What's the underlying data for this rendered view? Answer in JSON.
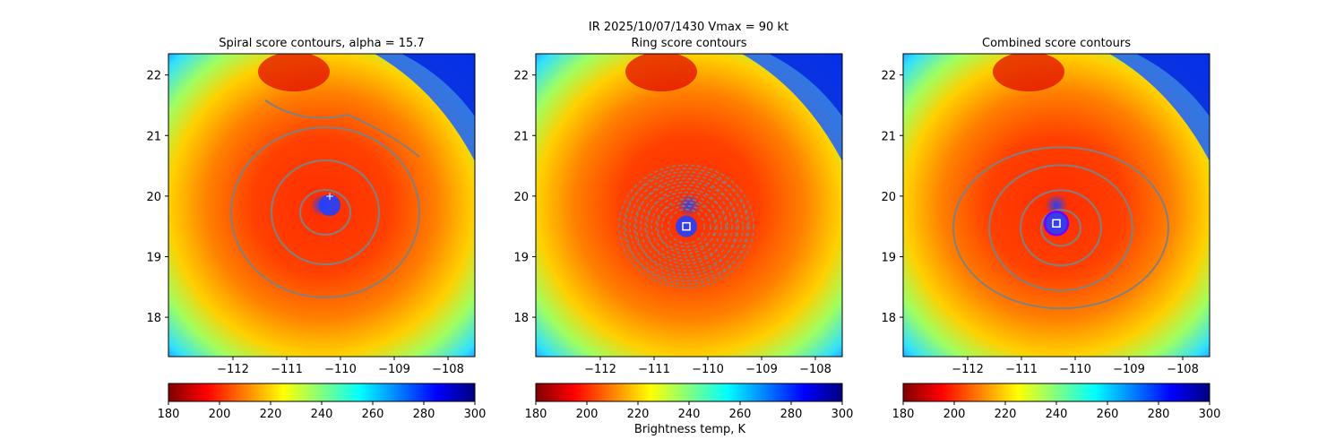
{
  "figure": {
    "suptitle_line1": "IR  2025/10/07/1430    Vmax = 90 kt",
    "colorbar_label": "Brightness temp, K"
  },
  "chart_data": [
    {
      "type": "heatmap",
      "title": "Spiral score contours, alpha = 15.7",
      "x_ticks": [
        -112,
        -111,
        -110,
        -109,
        -108
      ],
      "y_ticks": [
        18,
        19,
        20,
        21,
        22
      ],
      "xlim": [
        -113.2,
        -107.5
      ],
      "ylim": [
        17.35,
        22.35
      ],
      "colorbar": {
        "ticks": [
          180,
          200,
          220,
          240,
          260,
          280,
          300
        ],
        "range": [
          180,
          300
        ],
        "cmap": "jet_r"
      },
      "center": [
        -110.2,
        19.85
      ]
    },
    {
      "type": "heatmap",
      "title": "Ring score contours",
      "x_ticks": [
        -112,
        -111,
        -110,
        -109,
        -108
      ],
      "y_ticks": [
        18,
        19,
        20,
        21,
        22
      ],
      "xlim": [
        -113.2,
        -107.5
      ],
      "ylim": [
        17.35,
        22.35
      ],
      "colorbar": {
        "ticks": [
          180,
          200,
          220,
          240,
          260,
          280,
          300
        ],
        "range": [
          180,
          300
        ],
        "cmap": "jet"
      },
      "center": [
        -110.4,
        19.5
      ]
    },
    {
      "type": "heatmap",
      "title": "Combined score contours",
      "x_ticks": [
        -112,
        -111,
        -110,
        -109,
        -108
      ],
      "y_ticks": [
        18,
        19,
        20,
        21,
        22
      ],
      "xlim": [
        -113.2,
        -107.5
      ],
      "ylim": [
        17.35,
        22.35
      ],
      "colorbar": {
        "ticks": [
          180,
          200,
          220,
          240,
          260,
          280,
          300
        ],
        "range": [
          180,
          300
        ],
        "cmap": "jet"
      },
      "center": [
        -110.35,
        19.55
      ]
    }
  ],
  "colors": {
    "contour": "#808080",
    "jet": [
      "#800000",
      "#ff0000",
      "#ff8000",
      "#ffff00",
      "#80ff80",
      "#00ffff",
      "#0080ff",
      "#0000ff",
      "#000080"
    ]
  }
}
